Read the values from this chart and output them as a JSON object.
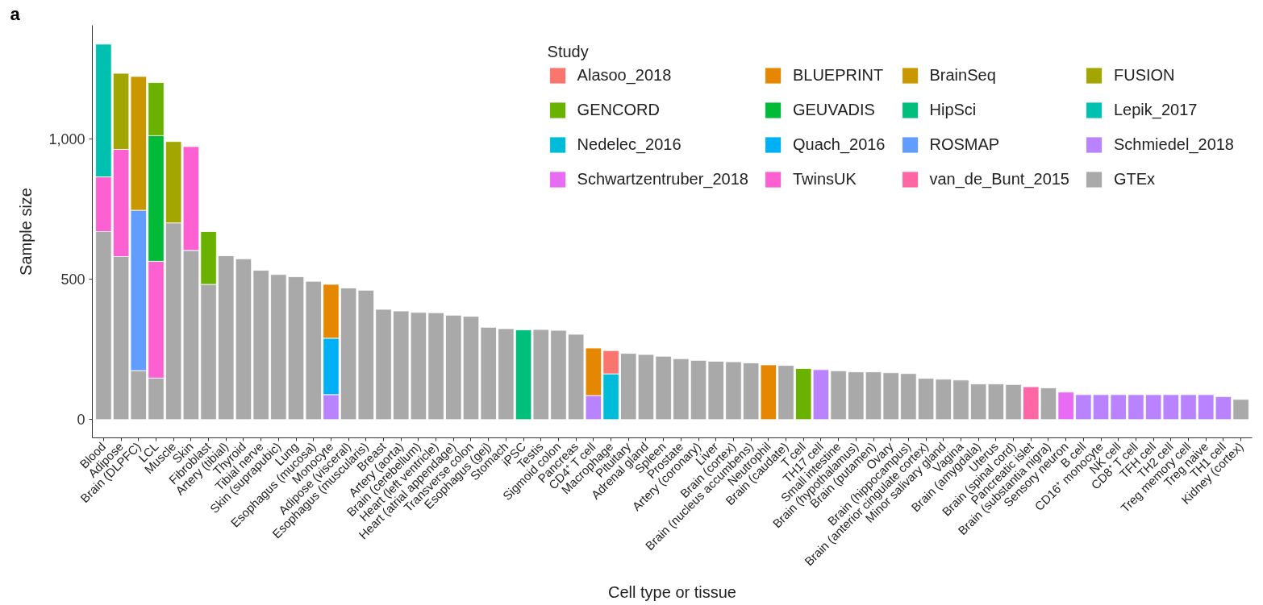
{
  "chart_data": {
    "type": "bar",
    "stacked": true,
    "xlabel": "Cell type or tissue",
    "ylabel": "Sample size",
    "legend_title": "Study",
    "legend": "top right",
    "annotations": [
      "a"
    ],
    "ylim": [
      -65,
      1405
    ],
    "yticks": [
      0,
      500,
      {
        "value": 1000,
        "label": "1,000"
      }
    ],
    "categories": [
      "Blood",
      "Adipose",
      "Brain (DLPFC)",
      "LCL",
      "Muscle",
      "Skin",
      "Fibroblast",
      "Artery (tibial)",
      "Thyroid",
      "Tibial nerve",
      "Skin (suprapubic)",
      "Lung",
      "Esophagus (mucosa)",
      "Monocyte",
      "Adipose (visceral)",
      "Esophagus (muscularis)",
      "Breast",
      "Artery (aorta)",
      "Brain (cerebellum)",
      "Heart (left ventricle)",
      "Heart (atrial appendage)",
      "Transverse colon",
      "Esophagus (gej)",
      "Stomach",
      "iPSC",
      "Testis",
      "Sigmoid colon",
      "Pancreas",
      "CD4⁺ T cell",
      "Macrophage",
      "Pituitary",
      "Adrenal gland",
      "Spleen",
      "Prostate",
      "Artery (coronary)",
      "Liver",
      "Brain (cortex)",
      "Brain (nucleus accumbens)",
      "Neutrophil",
      "Brain (caudate)",
      "T cell",
      "TH17 cell",
      "Small intestine",
      "Brain (hypothalamus)",
      "Brain (putamen)",
      "Ovary",
      "Brain (hippocampus)",
      "Brain (anterior cingulate cortex)",
      "Minor salivary gland",
      "Vagina",
      "Brain (amygdala)",
      "Uterus",
      "Brain (spinal cord)",
      "Pancreatic islet",
      "Brain (substantia nigra)",
      "Sensory neuron",
      "B cell",
      "CD16⁺ monocyte",
      "NK cell",
      "CD8⁺ T cell",
      "TFH cell",
      "TH2 cell",
      "Treg memory cell",
      "Treg naive",
      "TH1 cell",
      "Kidney (cortex)"
    ],
    "series": [
      {
        "name": "GTEx",
        "color": "#a9a9a9",
        "values": [
          670,
          581,
          175,
          148,
          701,
          603,
          482,
          584,
          573,
          532,
          517,
          509,
          493,
          null,
          469,
          461,
          393,
          387,
          382,
          381,
          372,
          368,
          329,
          324,
          null,
          321,
          318,
          304,
          null,
          null,
          236,
          232,
          226,
          217,
          211,
          208,
          206,
          202,
          null,
          193,
          null,
          null,
          174,
          170,
          170,
          167,
          164,
          147,
          144,
          141,
          127,
          127,
          125,
          null,
          113,
          null,
          null,
          null,
          null,
          null,
          null,
          null,
          null,
          null,
          null,
          72
        ]
      },
      {
        "name": "van_de_Bunt_2015",
        "color": "#ff67a4",
        "values": [
          null,
          null,
          null,
          null,
          null,
          null,
          null,
          null,
          null,
          null,
          null,
          null,
          null,
          null,
          null,
          null,
          null,
          null,
          null,
          null,
          null,
          null,
          null,
          null,
          null,
          null,
          null,
          null,
          null,
          null,
          null,
          null,
          null,
          null,
          null,
          null,
          null,
          null,
          null,
          null,
          null,
          null,
          null,
          null,
          null,
          null,
          null,
          null,
          null,
          null,
          null,
          null,
          null,
          117,
          null,
          null,
          null,
          null,
          null,
          null,
          null,
          null,
          null,
          null,
          null,
          null
        ]
      },
      {
        "name": "TwinsUK",
        "color": "#fd61d1",
        "values": [
          195,
          382,
          null,
          416,
          null,
          370,
          null,
          null,
          null,
          null,
          null,
          null,
          null,
          null,
          null,
          null,
          null,
          null,
          null,
          null,
          null,
          null,
          null,
          null,
          null,
          null,
          null,
          null,
          null,
          null,
          null,
          null,
          null,
          null,
          null,
          null,
          null,
          null,
          null,
          null,
          null,
          null,
          null,
          null,
          null,
          null,
          null,
          null,
          null,
          null,
          null,
          null,
          null,
          null,
          null,
          null,
          null,
          null,
          null,
          null,
          null,
          null,
          null,
          null,
          null,
          null
        ]
      },
      {
        "name": "Schwartzentruber_2018",
        "color": "#e76bf3",
        "values": [
          null,
          null,
          null,
          null,
          null,
          null,
          null,
          null,
          null,
          null,
          null,
          null,
          null,
          null,
          null,
          null,
          null,
          null,
          null,
          null,
          null,
          null,
          null,
          null,
          null,
          null,
          null,
          null,
          null,
          null,
          null,
          null,
          null,
          null,
          null,
          null,
          null,
          null,
          null,
          null,
          null,
          null,
          null,
          null,
          null,
          null,
          null,
          null,
          null,
          null,
          null,
          null,
          null,
          null,
          null,
          98,
          null,
          null,
          null,
          null,
          null,
          null,
          null,
          null,
          null,
          null
        ]
      },
      {
        "name": "Schmiedel_2018",
        "color": "#b983ff",
        "values": [
          null,
          null,
          null,
          null,
          null,
          null,
          null,
          null,
          null,
          null,
          null,
          null,
          null,
          89,
          null,
          null,
          null,
          null,
          null,
          null,
          null,
          null,
          null,
          null,
          null,
          null,
          null,
          null,
          86,
          null,
          null,
          null,
          null,
          null,
          null,
          null,
          null,
          null,
          null,
          null,
          null,
          178,
          null,
          null,
          null,
          null,
          null,
          null,
          null,
          null,
          null,
          null,
          null,
          null,
          null,
          null,
          89,
          89,
          89,
          89,
          89,
          89,
          89,
          89,
          82,
          null
        ]
      },
      {
        "name": "ROSMAP",
        "color": "#619cff",
        "values": [
          null,
          null,
          571,
          null,
          null,
          null,
          null,
          null,
          null,
          null,
          null,
          null,
          null,
          null,
          null,
          null,
          null,
          null,
          null,
          null,
          null,
          null,
          null,
          null,
          null,
          null,
          null,
          null,
          null,
          null,
          null,
          null,
          null,
          null,
          null,
          null,
          null,
          null,
          null,
          null,
          null,
          null,
          null,
          null,
          null,
          null,
          null,
          null,
          null,
          null,
          null,
          null,
          null,
          null,
          null,
          null,
          null,
          null,
          null,
          null,
          null,
          null,
          null,
          null,
          null,
          null
        ]
      },
      {
        "name": "Quach_2016",
        "color": "#00b0f6",
        "values": [
          null,
          null,
          null,
          null,
          null,
          null,
          null,
          null,
          null,
          null,
          null,
          null,
          null,
          201,
          null,
          null,
          null,
          null,
          null,
          null,
          null,
          null,
          null,
          null,
          null,
          null,
          null,
          null,
          null,
          null,
          null,
          null,
          null,
          null,
          null,
          null,
          null,
          null,
          null,
          null,
          null,
          null,
          null,
          null,
          null,
          null,
          null,
          null,
          null,
          null,
          null,
          null,
          null,
          null,
          null,
          null,
          null,
          null,
          null,
          null,
          null,
          null,
          null,
          null,
          null,
          null
        ]
      },
      {
        "name": "Nedelec_2016",
        "color": "#00bcd8",
        "values": [
          null,
          null,
          null,
          null,
          null,
          null,
          null,
          null,
          null,
          null,
          null,
          null,
          null,
          null,
          null,
          null,
          null,
          null,
          null,
          null,
          null,
          null,
          null,
          null,
          null,
          null,
          null,
          null,
          null,
          163,
          null,
          null,
          null,
          null,
          null,
          null,
          null,
          null,
          null,
          null,
          null,
          null,
          null,
          null,
          null,
          null,
          null,
          null,
          null,
          null,
          null,
          null,
          null,
          null,
          null,
          null,
          null,
          null,
          null,
          null,
          null,
          null,
          null,
          null,
          null,
          null
        ]
      },
      {
        "name": "Lepik_2017",
        "color": "#00c0af",
        "values": [
          473,
          null,
          null,
          null,
          null,
          null,
          null,
          null,
          null,
          null,
          null,
          null,
          null,
          null,
          null,
          null,
          null,
          null,
          null,
          null,
          null,
          null,
          null,
          null,
          null,
          null,
          null,
          null,
          null,
          null,
          null,
          null,
          null,
          null,
          null,
          null,
          null,
          null,
          null,
          null,
          null,
          null,
          null,
          null,
          null,
          null,
          null,
          null,
          null,
          null,
          null,
          null,
          null,
          null,
          null,
          null,
          null,
          null,
          null,
          null,
          null,
          null,
          null,
          null,
          null,
          null
        ]
      },
      {
        "name": "HipSci",
        "color": "#00bf7d",
        "values": [
          null,
          null,
          null,
          null,
          null,
          null,
          null,
          null,
          null,
          null,
          null,
          null,
          null,
          null,
          null,
          null,
          null,
          null,
          null,
          null,
          null,
          null,
          null,
          null,
          320,
          null,
          null,
          null,
          null,
          null,
          null,
          null,
          null,
          null,
          null,
          null,
          null,
          null,
          null,
          null,
          null,
          null,
          null,
          null,
          null,
          null,
          null,
          null,
          null,
          null,
          null,
          null,
          null,
          null,
          null,
          null,
          null,
          null,
          null,
          null,
          null,
          null,
          null,
          null,
          null,
          null
        ]
      },
      {
        "name": "GEUVADIS",
        "color": "#00ba38",
        "values": [
          null,
          null,
          null,
          448,
          null,
          null,
          null,
          null,
          null,
          null,
          null,
          null,
          null,
          null,
          null,
          null,
          null,
          null,
          null,
          null,
          null,
          null,
          null,
          null,
          null,
          null,
          null,
          null,
          null,
          null,
          null,
          null,
          null,
          null,
          null,
          null,
          null,
          null,
          null,
          null,
          null,
          null,
          null,
          null,
          null,
          null,
          null,
          null,
          null,
          null,
          null,
          null,
          null,
          null,
          null,
          null,
          null,
          null,
          null,
          null,
          null,
          null,
          null,
          null,
          null,
          null
        ]
      },
      {
        "name": "GENCORD",
        "color": "#6bb100",
        "values": [
          null,
          null,
          null,
          189,
          null,
          null,
          188,
          null,
          null,
          null,
          null,
          null,
          null,
          null,
          null,
          null,
          null,
          null,
          null,
          null,
          null,
          null,
          null,
          null,
          null,
          null,
          null,
          null,
          null,
          null,
          null,
          null,
          null,
          null,
          null,
          null,
          null,
          null,
          null,
          null,
          182,
          null,
          null,
          null,
          null,
          null,
          null,
          null,
          null,
          null,
          null,
          null,
          null,
          null,
          null,
          null,
          null,
          null,
          null,
          null,
          null,
          null,
          null,
          null,
          null,
          null
        ]
      },
      {
        "name": "FUSION",
        "color": "#a3a500",
        "values": [
          null,
          271,
          null,
          null,
          290,
          null,
          null,
          null,
          null,
          null,
          null,
          null,
          null,
          null,
          null,
          null,
          null,
          null,
          null,
          null,
          null,
          null,
          null,
          null,
          null,
          null,
          null,
          null,
          null,
          null,
          null,
          null,
          null,
          null,
          null,
          null,
          null,
          null,
          null,
          null,
          null,
          null,
          null,
          null,
          null,
          null,
          null,
          null,
          null,
          null,
          null,
          null,
          null,
          null,
          null,
          null,
          null,
          null,
          null,
          null,
          null,
          null,
          null,
          null,
          null,
          null
        ]
      },
      {
        "name": "BrainSeq",
        "color": "#c99800",
        "values": [
          null,
          null,
          477,
          null,
          null,
          null,
          null,
          null,
          null,
          null,
          null,
          null,
          null,
          null,
          null,
          null,
          null,
          null,
          null,
          null,
          null,
          null,
          null,
          null,
          null,
          null,
          null,
          null,
          null,
          null,
          null,
          null,
          null,
          null,
          null,
          null,
          null,
          null,
          null,
          null,
          null,
          null,
          null,
          null,
          null,
          null,
          null,
          null,
          null,
          null,
          null,
          null,
          null,
          null,
          null,
          null,
          null,
          null,
          null,
          null,
          null,
          null,
          null,
          null,
          null,
          null
        ]
      },
      {
        "name": "BLUEPRINT",
        "color": "#e58700",
        "values": [
          null,
          null,
          null,
          null,
          null,
          null,
          null,
          null,
          null,
          null,
          null,
          null,
          null,
          192,
          null,
          null,
          null,
          null,
          null,
          null,
          null,
          null,
          null,
          null,
          null,
          null,
          null,
          null,
          169,
          null,
          null,
          null,
          null,
          null,
          null,
          null,
          null,
          null,
          195,
          null,
          null,
          null,
          null,
          null,
          null,
          null,
          null,
          null,
          null,
          null,
          null,
          null,
          null,
          null,
          null,
          null,
          null,
          null,
          null,
          null,
          null,
          null,
          null,
          null,
          null,
          null
        ]
      },
      {
        "name": "Alasoo_2018",
        "color": "#f8766d",
        "values": [
          null,
          null,
          null,
          null,
          null,
          null,
          null,
          null,
          null,
          null,
          null,
          null,
          null,
          null,
          null,
          null,
          null,
          null,
          null,
          null,
          null,
          null,
          null,
          null,
          null,
          null,
          null,
          null,
          null,
          83,
          null,
          null,
          null,
          null,
          null,
          null,
          null,
          null,
          null,
          null,
          null,
          null,
          null,
          null,
          null,
          null,
          null,
          null,
          null,
          null,
          null,
          null,
          null,
          null,
          null,
          null,
          null,
          null,
          null,
          null,
          null,
          null,
          null,
          null,
          null,
          null
        ]
      }
    ]
  }
}
